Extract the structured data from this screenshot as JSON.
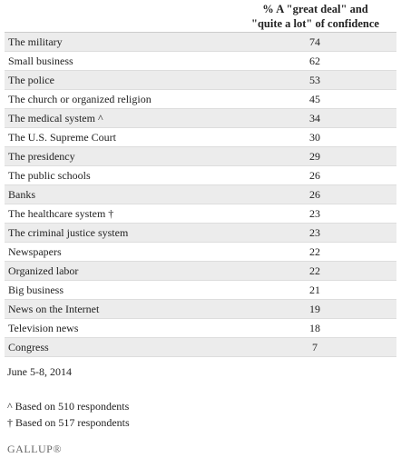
{
  "header": {
    "lines": [
      "% A \"great deal\" and",
      "\"quite a lot\" of confidence"
    ]
  },
  "table": {
    "rows": [
      [
        "The military",
        74
      ],
      [
        "Small business",
        62
      ],
      [
        "The police",
        53
      ],
      [
        "The church or organized religion",
        45
      ],
      [
        "The medical system ^",
        34
      ],
      [
        "The U.S. Supreme Court",
        30
      ],
      [
        "The presidency",
        29
      ],
      [
        "The public schools",
        26
      ],
      [
        "Banks",
        26
      ],
      [
        "The healthcare system †",
        23
      ],
      [
        "The criminal justice system",
        23
      ],
      [
        "Newspapers",
        22
      ],
      [
        "Organized labor",
        22
      ],
      [
        "Big business",
        21
      ],
      [
        "News on the Internet",
        19
      ],
      [
        "Television news",
        18
      ],
      [
        "Congress",
        7
      ]
    ]
  },
  "footer": {
    "date": "June 5-8, 2014",
    "notes": [
      "^ Based on 510 respondents",
      "† Based on 517 respondents"
    ],
    "brand": "GALLUP®"
  }
}
